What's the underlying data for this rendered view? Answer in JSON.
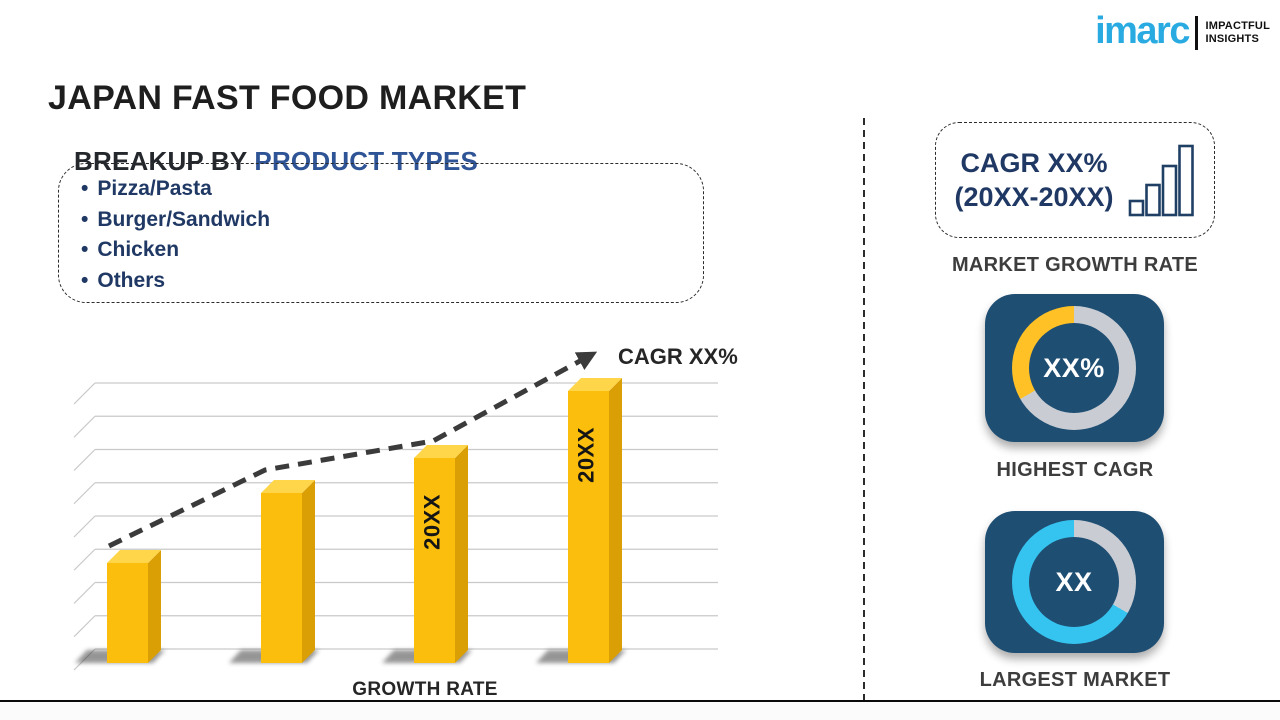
{
  "page": {
    "title": "JAPAN FAST FOOD MARKET"
  },
  "logo": {
    "brand": "imarc",
    "tagline_line1": "IMPACTFUL",
    "tagline_line2": "INSIGHTS",
    "brand_color": "#29ABE2"
  },
  "breakup": {
    "heading_prefix": "BREAKUP BY ",
    "heading_highlight": "PRODUCT TYPES",
    "items": [
      "Pizza/Pasta",
      "Burger/Sandwich",
      "Chicken",
      "Others"
    ]
  },
  "growth_chart": {
    "xlabel": "GROWTH RATE",
    "trend_label": "CAGR XX%"
  },
  "right_panel": {
    "cagr_box": {
      "line1": "CAGR XX%",
      "line2": "(20XX-20XX)"
    },
    "market_growth_rate_label": "MARKET GROWTH RATE",
    "highest_cagr_caption": "HIGHEST CAGR",
    "largest_market_caption": "LARGEST MARKET",
    "donut1_center": "XX%",
    "donut2_center": "XX",
    "card_color": "#1F4E73"
  },
  "chart_data": [
    {
      "type": "bar",
      "title": "GROWTH RATE",
      "categories": [
        "",
        "",
        "20XX",
        "20XX"
      ],
      "values": [
        100,
        170,
        205,
        272
      ],
      "value_note": "placeholder chart: no numeric axis shown, values are relative bar heights (px)",
      "ylim": [
        0,
        300
      ],
      "grid": true,
      "bar_color": "#FCBE0D",
      "bar_top_color": "#FFD54A",
      "bar_side_color": "#DB9F06",
      "trend": {
        "type": "dashed-arrow-line",
        "label": "CAGR XX%",
        "values": [
          117,
          193,
          222,
          308
        ]
      }
    },
    {
      "type": "donut",
      "center_label": "XX%",
      "caption": "HIGHEST CAGR",
      "segments": [
        {
          "name": "base",
          "color": "#C9CDD3",
          "from_deg": 0,
          "to_deg": 240
        },
        {
          "name": "highlight",
          "color": "#FFC125",
          "from_deg": 240,
          "to_deg": 360
        }
      ]
    },
    {
      "type": "donut",
      "center_label": "XX",
      "caption": "LARGEST MARKET",
      "segments": [
        {
          "name": "base",
          "color": "#C9CDD3",
          "from_deg": 0,
          "to_deg": 120
        },
        {
          "name": "highlight",
          "color": "#35C4F0",
          "from_deg": 120,
          "to_deg": 360
        }
      ]
    }
  ]
}
